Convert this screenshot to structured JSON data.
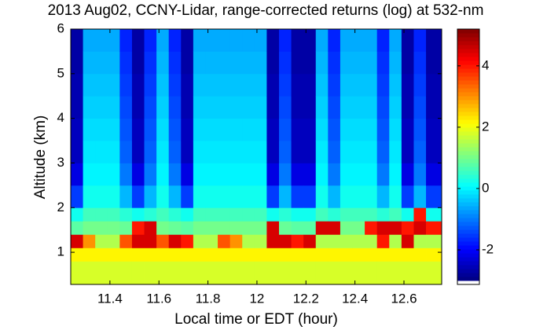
{
  "chart_data": {
    "type": "heatmap",
    "title": "2013 Aug02, CCNY-Lidar, range-corrected returns (log) at 532-nm",
    "x_label": "Local time or EDT (hour)",
    "y_label": "Altitude (km)",
    "xlim": [
      11.24,
      12.754
    ],
    "xticks": [
      11.4,
      11.6,
      11.8,
      12,
      12.2,
      12.4,
      12.6
    ],
    "ylim": [
      0.28,
      6
    ],
    "yticks": [
      1,
      2,
      3,
      4,
      5,
      6
    ],
    "clim": [
      -3,
      5.2
    ],
    "cticks": [
      -2,
      0,
      2,
      4
    ],
    "colormap": "jet",
    "x_edges": [
      11.24,
      11.29,
      11.34,
      11.39,
      11.44,
      11.49,
      11.54,
      11.59,
      11.64,
      11.69,
      11.74,
      11.79,
      11.84,
      11.89,
      11.94,
      11.99,
      12.04,
      12.09,
      12.14,
      12.19,
      12.24,
      12.29,
      12.34,
      12.39,
      12.44,
      12.49,
      12.54,
      12.59,
      12.64,
      12.69,
      12.754
    ],
    "y_edges": [
      0.28,
      0.8,
      1.1,
      1.4,
      1.7,
      2,
      2.5,
      3,
      3.5,
      4,
      4.5,
      5,
      5.5,
      6
    ],
    "z": [
      [
        1.8,
        2.2,
        4.5,
        0.8,
        0.2,
        -1.5,
        -2.2,
        -2.5,
        -2.5,
        -2.6,
        -2.6,
        -2.7,
        -2.7
      ],
      [
        1.8,
        2.2,
        3,
        1.0,
        0.6,
        0.2,
        0,
        -0.1,
        -0.2,
        -0.3,
        -0.4,
        -0.5,
        -0.6
      ],
      [
        1.8,
        2.2,
        1.5,
        1.0,
        0.6,
        0.2,
        0,
        -0.1,
        -0.2,
        -0.3,
        -0.4,
        -0.5,
        -0.6
      ],
      [
        1.8,
        2.2,
        1.5,
        1.0,
        0.6,
        0.2,
        0,
        -0.1,
        -0.2,
        -0.3,
        -0.4,
        -0.5,
        -0.6
      ],
      [
        1.8,
        2.2,
        3.5,
        0.9,
        0.4,
        -0.5,
        -1,
        -1.2,
        -1.3,
        -1.4,
        -1.5,
        -1.6,
        -1.7
      ],
      [
        1.8,
        2.2,
        4.5,
        4,
        0.2,
        -1.5,
        -2.2,
        -2.5,
        -2.5,
        -2.6,
        -2.6,
        -2.7,
        -2.7
      ],
      [
        1.8,
        2.2,
        4.5,
        4.5,
        0.4,
        -0.5,
        -1,
        -1.2,
        -1.3,
        -1.4,
        -1.5,
        -1.6,
        -1.7
      ],
      [
        1.8,
        2.2,
        3.5,
        1.0,
        0.6,
        0.2,
        0,
        -0.1,
        -0.2,
        -0.3,
        -0.4,
        -0.5,
        -0.6
      ],
      [
        1.8,
        2.2,
        4.5,
        0.9,
        0.4,
        -0.5,
        -1,
        -1.2,
        -1.3,
        -1.4,
        -1.5,
        -1.6,
        -1.7
      ],
      [
        1.8,
        2.2,
        4,
        0.8,
        0.2,
        -1.5,
        -2.2,
        -2.5,
        -2.5,
        -2.6,
        -2.6,
        -2.7,
        -2.7
      ],
      [
        1.8,
        2.2,
        1.5,
        1.0,
        0.6,
        0.2,
        0,
        -0.1,
        -0.2,
        -0.3,
        -0.4,
        -0.5,
        -0.6
      ],
      [
        1.8,
        2.2,
        1.5,
        1.0,
        0.6,
        0.2,
        0,
        -0.1,
        -0.2,
        -0.3,
        -0.4,
        -0.5,
        -0.6
      ],
      [
        1.8,
        2.2,
        3.5,
        1.0,
        0.6,
        0.2,
        0,
        -0.1,
        -0.2,
        -0.3,
        -0.4,
        -0.5,
        -0.6
      ],
      [
        1.8,
        2.2,
        3,
        1.0,
        0.6,
        0.2,
        0,
        -0.1,
        -0.2,
        -0.3,
        -0.4,
        -0.5,
        -0.6
      ],
      [
        1.8,
        2.2,
        1.5,
        1.0,
        0.6,
        0.2,
        0,
        -0.1,
        -0.2,
        -0.3,
        -0.4,
        -0.5,
        -0.6
      ],
      [
        1.8,
        2.2,
        1.5,
        1.0,
        0.6,
        0.2,
        0,
        -0.1,
        -0.2,
        -0.3,
        -0.4,
        -0.5,
        -0.6
      ],
      [
        1.8,
        2.2,
        4.5,
        4.5,
        0.2,
        -1.5,
        -2.2,
        -2.5,
        -2.5,
        -2.6,
        -2.6,
        -2.7,
        -2.7
      ],
      [
        1.8,
        2.2,
        4.5,
        0.9,
        0.4,
        -0.5,
        -1,
        -1.2,
        -1.3,
        -1.4,
        -1.5,
        -1.6,
        -1.7
      ],
      [
        1.8,
        2.2,
        4,
        0.8,
        0.2,
        -1.5,
        -2.2,
        -2.5,
        -2.5,
        -2.6,
        -2.6,
        -2.7,
        -2.7
      ],
      [
        1.8,
        2.2,
        4.5,
        0.8,
        0.2,
        -1.5,
        -2.2,
        -2.5,
        -2.5,
        -2.6,
        -2.6,
        -2.7,
        -2.7
      ],
      [
        1.8,
        2.2,
        1.5,
        4.5,
        0.6,
        0.2,
        0,
        -0.1,
        -0.2,
        -0.3,
        -0.4,
        -0.5,
        -0.6
      ],
      [
        1.8,
        2.2,
        1.5,
        4.5,
        0.4,
        -0.5,
        -1,
        -1.2,
        -1.3,
        -1.4,
        -1.5,
        -1.6,
        -1.7
      ],
      [
        1.8,
        2.2,
        1.5,
        1.0,
        0.6,
        0.2,
        0,
        -0.1,
        -0.2,
        -0.3,
        -0.4,
        -0.5,
        -0.6
      ],
      [
        1.8,
        2.2,
        1.5,
        1.0,
        0.6,
        0.2,
        0,
        -0.1,
        -0.2,
        -0.3,
        -0.4,
        -0.5,
        -0.6
      ],
      [
        1.8,
        2.2,
        1.5,
        4,
        0.6,
        0.2,
        0,
        -0.1,
        -0.2,
        -0.3,
        -0.4,
        -0.5,
        -0.6
      ],
      [
        1.8,
        2.2,
        4,
        4.5,
        0.4,
        -0.5,
        -1,
        -1.2,
        -1.3,
        -1.4,
        -1.5,
        -1.6,
        -1.7
      ],
      [
        1.8,
        2.2,
        1.5,
        4.5,
        0.6,
        0.2,
        0,
        -0.1,
        -0.2,
        -0.3,
        -0.4,
        -0.5,
        -0.6
      ],
      [
        1.8,
        2.2,
        4.5,
        4,
        0.2,
        -1.5,
        -2.2,
        -2.5,
        -2.5,
        -2.6,
        -2.6,
        -2.7,
        -2.7
      ],
      [
        1.8,
        2.2,
        1.5,
        4.5,
        4,
        -0.5,
        -1,
        -1.2,
        -1.3,
        -1.4,
        -1.5,
        -1.6,
        -1.7
      ],
      [
        1.8,
        2.2,
        1.5,
        4,
        0.2,
        -1.5,
        -2.2,
        -2.5,
        -2.5,
        -2.6,
        -2.6,
        -2.7,
        -2.7
      ]
    ]
  }
}
